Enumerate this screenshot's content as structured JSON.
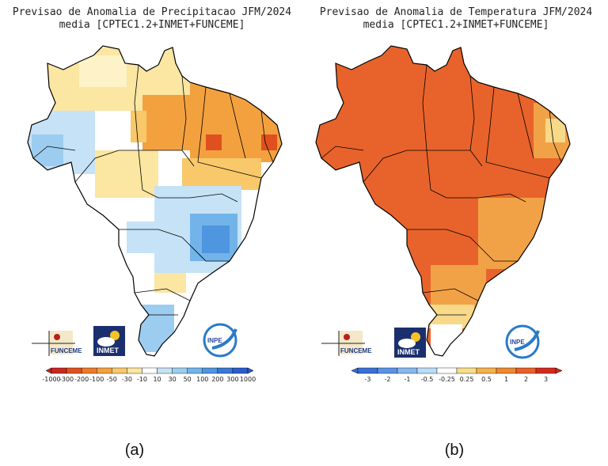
{
  "panel_a": {
    "title_line1": "Previsao de Anomalia de Precipitacao JFM/2024",
    "title_line2": "media [CPTEC1.2+INMET+FUNCEME]",
    "caption": "(a)",
    "colorbar_ticks": [
      "-1000",
      "-300",
      "-200",
      "-100",
      "-50",
      "-30",
      "-10",
      "10",
      "30",
      "50",
      "100",
      "200",
      "300",
      "1000"
    ],
    "colorbar_colors": [
      "#c8281e",
      "#e0501e",
      "#ec7a2c",
      "#f3a13f",
      "#f8c86a",
      "#fbe6a2",
      "#ffffff",
      "#c6e2f6",
      "#9ccdf0",
      "#72b4ea",
      "#4f96e0",
      "#3878d6",
      "#2a5ccc"
    ]
  },
  "panel_b": {
    "title_line1": "Previsao de Anomalia de Temperatura JFM/2024",
    "title_line2": "media [CPTEC1.2+INMET+FUNCEME]",
    "caption": "(b)",
    "colorbar_ticks": [
      "-3",
      "-2",
      "-1",
      "-0.5",
      "-0.25",
      "0.25",
      "0.5",
      "1",
      "2",
      "3"
    ],
    "colorbar_colors": [
      "#3a6fd6",
      "#5a93e6",
      "#86b8f0",
      "#b9dcf7",
      "#ffffff",
      "#f8dd8a",
      "#f4b24a",
      "#ee8a30",
      "#e8602a",
      "#d32a1e"
    ]
  },
  "logos": {
    "funceme": "FUNCEME",
    "inmet": "INMET",
    "inpe": "INPE"
  },
  "colors": {
    "precip_dry_strong": "#f0a040",
    "precip_dry_weak": "#fbe6a2",
    "precip_wet": "#a9d3f3",
    "precip_wet_strong": "#6fa6e8",
    "temp_hot": "#e8632b",
    "temp_warm": "#f2a246",
    "temp_mild": "#f8d98a"
  }
}
